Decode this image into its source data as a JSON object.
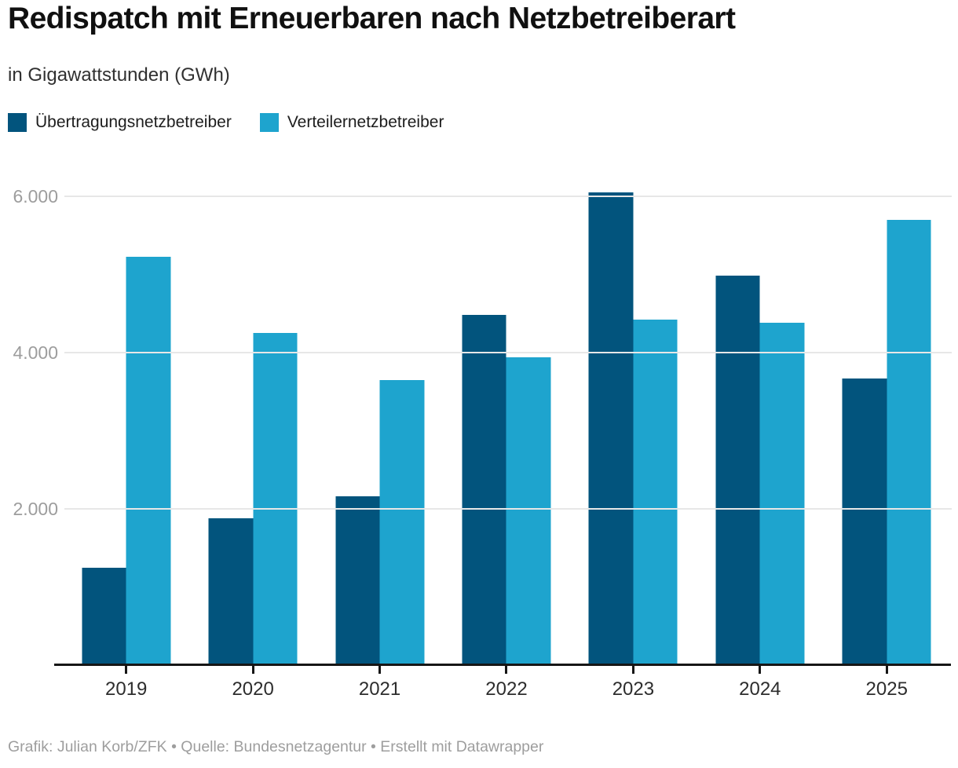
{
  "header": {
    "title": "Redispatch mit Erneuerbaren nach Netzbetreiberart",
    "subtitle": "in Gigawattstunden (GWh)"
  },
  "footer": {
    "text": "Grafik: Julian Korb/ZFK • Quelle: Bundesnetzagentur • Erstellt mit Datawrapper"
  },
  "colors": {
    "unb_dark_blue": "#02547d",
    "vnb_light_blue": "#1ea4ce",
    "gridline": "#e7e7e7",
    "axis": "#161616",
    "y_label": "#9d9d9d",
    "x_label": "#2d2d2d"
  },
  "chart_data": {
    "type": "bar",
    "title": "Redispatch mit Erneuerbaren nach Netzbetreiberart",
    "subtitle": "in Gigawattstunden (GWh)",
    "xlabel": "",
    "ylabel": "GWh",
    "categories": [
      "2019",
      "2020",
      "2021",
      "2022",
      "2023",
      "2024",
      "2025"
    ],
    "series": [
      {
        "name": "Übertragungsnetzbetreiber",
        "color": "#02547d",
        "values": [
          1250,
          1880,
          2160,
          4480,
          6050,
          4980,
          3670
        ]
      },
      {
        "name": "Verteilernetzbetreiber",
        "color": "#1ea4ce",
        "values": [
          5220,
          4250,
          3650,
          3940,
          4420,
          4380,
          5700
        ]
      }
    ],
    "y_ticks": [
      {
        "value": 2000,
        "label": "2.000"
      },
      {
        "value": 4000,
        "label": "4.000"
      },
      {
        "value": 6000,
        "label": "6.000"
      }
    ],
    "ylim": [
      0,
      6600
    ],
    "grid": true,
    "legend_position": "top-left"
  }
}
